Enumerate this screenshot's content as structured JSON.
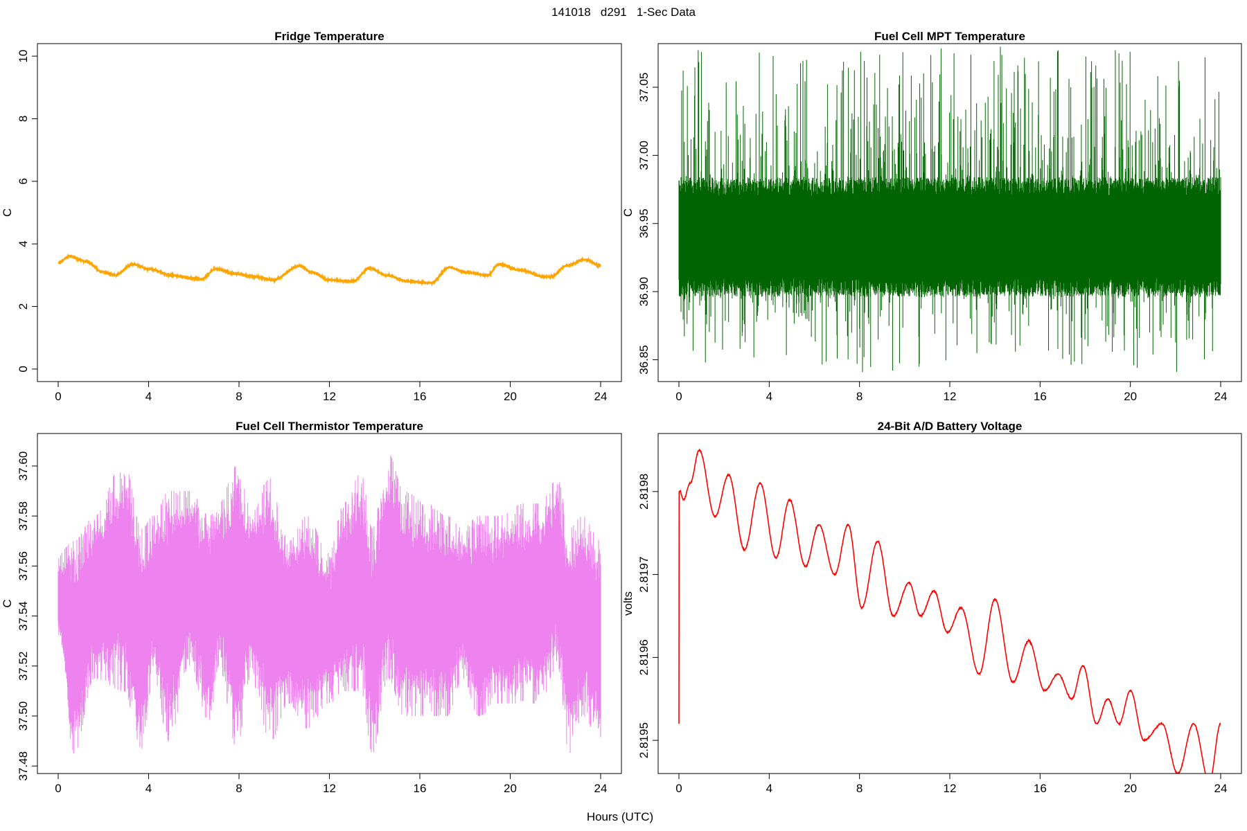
{
  "figure": {
    "suptitle": "141018   d291   1-Sec Data",
    "xlabel": "Hours (UTC)"
  },
  "chart_data": [
    {
      "type": "line",
      "title": "Fridge Temperature",
      "ylabel": "C",
      "color": "#ffa500",
      "xlim": [
        0,
        24
      ],
      "ylim": [
        -0.4,
        10.4
      ],
      "xticks": [
        0,
        4,
        8,
        12,
        16,
        20,
        24
      ],
      "xtick_labels": [
        "0",
        "4",
        "8",
        "12",
        "16",
        "20",
        "24"
      ],
      "yticks": [
        0,
        2,
        4,
        6,
        8,
        10
      ],
      "ytick_labels": [
        "0",
        "2",
        "4",
        "6",
        "8",
        "10"
      ],
      "noise": 0.02,
      "x": [
        0,
        0.5,
        1.2,
        2.0,
        2.5,
        3.3,
        4.0,
        5.0,
        6.0,
        6.3,
        7.0,
        7.8,
        8.7,
        9.5,
        10.7,
        11.2,
        12.0,
        13.0,
        13.8,
        14.5,
        15.5,
        16.5,
        17.3,
        18.0,
        19.0,
        19.5,
        20.5,
        21.5,
        21.8,
        22.5,
        23.3,
        24.0
      ],
      "y": [
        3.4,
        3.6,
        3.45,
        3.1,
        3.0,
        3.35,
        3.2,
        3.0,
        2.9,
        2.87,
        3.2,
        3.05,
        2.95,
        2.85,
        3.3,
        3.1,
        2.85,
        2.8,
        3.22,
        3.0,
        2.8,
        2.75,
        3.25,
        3.1,
        3.0,
        3.35,
        3.15,
        2.95,
        2.95,
        3.3,
        3.5,
        3.3
      ]
    },
    {
      "type": "line",
      "title": "Fuel Cell MPT Temperature",
      "ylabel": "C",
      "color": "#006400",
      "xlim": [
        0,
        24
      ],
      "ylim": [
        36.834,
        37.082
      ],
      "xticks": [
        0,
        4,
        8,
        12,
        16,
        20,
        24
      ],
      "xtick_labels": [
        "0",
        "4",
        "8",
        "12",
        "16",
        "20",
        "24"
      ],
      "yticks": [
        36.85,
        36.9,
        36.95,
        37.0,
        37.05
      ],
      "ytick_labels": [
        "36.85",
        "36.90",
        "36.95",
        "37.00",
        "37.05"
      ],
      "band": {
        "center": 36.94,
        "half_width": 0.04,
        "spike_up_max": 37.08,
        "spike_down_min": 36.84
      }
    },
    {
      "type": "line",
      "title": "Fuel Cell Thermistor Temperature",
      "ylabel": "C",
      "color": "#ee82ee",
      "xlim": [
        0,
        24
      ],
      "ylim": [
        37.477,
        37.613
      ],
      "xticks": [
        0,
        4,
        8,
        12,
        16,
        20,
        24
      ],
      "xtick_labels": [
        "0",
        "4",
        "8",
        "12",
        "16",
        "20",
        "24"
      ],
      "yticks": [
        37.48,
        37.5,
        37.52,
        37.54,
        37.56,
        37.58,
        37.6
      ],
      "ytick_labels": [
        "37.48",
        "37.50",
        "37.52",
        "37.54",
        "37.56",
        "37.58",
        "37.60"
      ],
      "band": {
        "center": 37.545,
        "envelope_x": [
          0,
          0.7,
          1.6,
          2.9,
          3.7,
          4.2,
          4.9,
          5.8,
          6.7,
          7.1,
          7.9,
          8.5,
          9.4,
          10.2,
          11.0,
          12.0,
          12.6,
          13.4,
          13.9,
          14.6,
          15.3,
          16.3,
          17.2,
          17.9,
          18.6,
          19.5,
          20.6,
          21.3,
          22.1,
          22.6,
          23.2,
          24.0
        ],
        "envelope_lo": [
          37.53,
          37.485,
          37.515,
          37.51,
          37.487,
          37.515,
          37.49,
          37.52,
          37.497,
          37.52,
          37.487,
          37.515,
          37.49,
          37.505,
          37.495,
          37.505,
          37.51,
          37.51,
          37.485,
          37.515,
          37.5,
          37.5,
          37.5,
          37.515,
          37.5,
          37.505,
          37.505,
          37.505,
          37.52,
          37.485,
          37.5,
          37.49
        ],
        "envelope_hi": [
          37.565,
          37.57,
          37.58,
          37.602,
          37.575,
          37.58,
          37.59,
          37.59,
          37.58,
          37.585,
          37.6,
          37.585,
          37.595,
          37.57,
          37.58,
          37.565,
          37.585,
          37.597,
          37.575,
          37.605,
          37.59,
          37.585,
          37.58,
          37.575,
          37.58,
          37.58,
          37.585,
          37.585,
          37.595,
          37.575,
          37.58,
          37.57
        ]
      }
    },
    {
      "type": "line",
      "title": "24-Bit A/D Battery Voltage",
      "ylabel": "volts",
      "color": "#ff0000",
      "xlim": [
        0,
        24
      ],
      "ylim": [
        2.81946,
        2.81987
      ],
      "xticks": [
        0,
        4,
        8,
        12,
        16,
        20,
        24
      ],
      "xtick_labels": [
        "0",
        "4",
        "8",
        "12",
        "16",
        "20",
        "24"
      ],
      "yticks": [
        2.8195,
        2.8196,
        2.8197,
        2.8198
      ],
      "ytick_labels": [
        "2.8195",
        "2.8196",
        "2.8197",
        "2.8198"
      ],
      "noise": 8e-07,
      "x": [
        0,
        0.01,
        0.05,
        0.2,
        0.5,
        0.9,
        1.6,
        2.2,
        2.9,
        3.6,
        4.3,
        4.9,
        5.6,
        6.2,
        6.9,
        7.5,
        8.1,
        8.8,
        9.5,
        10.2,
        10.7,
        11.3,
        11.9,
        12.5,
        13.3,
        14.0,
        14.8,
        15.5,
        16.2,
        16.8,
        17.4,
        17.9,
        18.5,
        19.0,
        19.5,
        20.0,
        20.6,
        21.4,
        22.1,
        22.8,
        23.5,
        24.0
      ],
      "y": [
        2.81952,
        2.8198,
        2.8198,
        2.81979,
        2.81981,
        2.81985,
        2.81977,
        2.81982,
        2.81973,
        2.81981,
        2.81972,
        2.81979,
        2.81971,
        2.81976,
        2.8197,
        2.81976,
        2.81966,
        2.81974,
        2.81965,
        2.81969,
        2.81965,
        2.81968,
        2.81963,
        2.81966,
        2.81958,
        2.81967,
        2.81957,
        2.81962,
        2.81956,
        2.81958,
        2.81955,
        2.81959,
        2.81952,
        2.81955,
        2.81952,
        2.81956,
        2.8195,
        2.81952,
        2.81946,
        2.81952,
        2.81945,
        2.81952
      ]
    }
  ]
}
